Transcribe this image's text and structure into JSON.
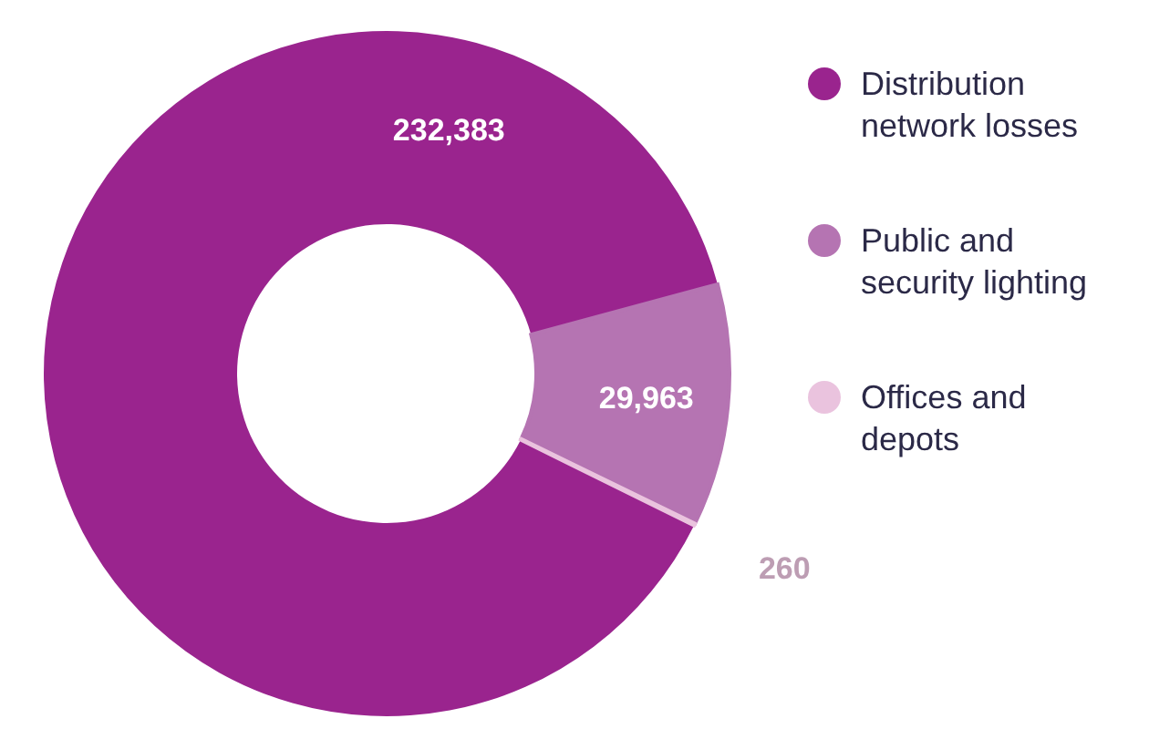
{
  "chart_data": {
    "type": "donut",
    "categories": [
      "Distribution network losses",
      "Public and security lighting",
      "Offices and depots"
    ],
    "values": [
      232383,
      29963,
      260
    ],
    "colors": [
      "#9a248e",
      "#b574b2",
      "#eac3de"
    ],
    "value_labels": [
      "232,383",
      "29,963",
      "260"
    ],
    "legend": "right"
  }
}
